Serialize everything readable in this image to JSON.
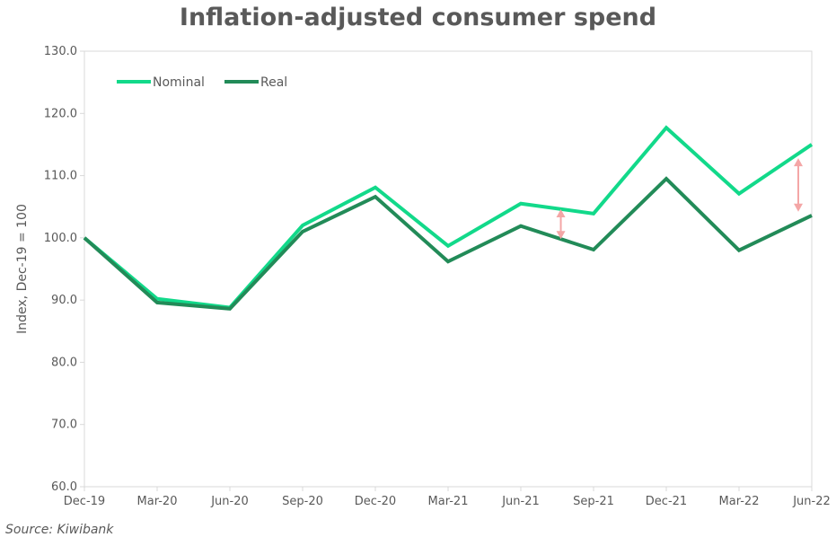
{
  "chart_data": {
    "type": "line",
    "title": "Inflation-adjusted consumer spend",
    "xlabel": "",
    "ylabel": "Index, Dec-19 = 100",
    "categories": [
      "Dec-19",
      "Mar-20",
      "Jun-20",
      "Sep-20",
      "Dec-20",
      "Mar-21",
      "Jun-21",
      "Sep-21",
      "Dec-21",
      "Mar-22",
      "Jun-22"
    ],
    "ylim": [
      60,
      130
    ],
    "yticks": [
      "60.0",
      "70.0",
      "80.0",
      "90.0",
      "100.0",
      "110.0",
      "120.0",
      "130.0"
    ],
    "grid": false,
    "legend": "top-left",
    "series": [
      {
        "name": "Nominal",
        "color": "#12D98A",
        "values": [
          100.0,
          90.2,
          88.8,
          102.0,
          108.1,
          98.7,
          105.5,
          103.9,
          117.7,
          107.1,
          115.0
        ]
      },
      {
        "name": "Real",
        "color": "#228B58",
        "values": [
          100.0,
          89.6,
          88.6,
          101.0,
          106.6,
          96.2,
          101.9,
          98.1,
          109.5,
          98.0,
          103.6
        ]
      }
    ],
    "annotations": [
      {
        "type": "double-arrow",
        "color": "#F4A6A6",
        "x_between": [
          "Jun-21",
          "Sep-21"
        ],
        "y_range": [
          99.8,
          104.6
        ]
      },
      {
        "type": "double-arrow",
        "color": "#F4A6A6",
        "x_near": "Jun-22",
        "y_range": [
          104.2,
          112.8
        ]
      }
    ]
  },
  "source": "Source: Kiwibank"
}
